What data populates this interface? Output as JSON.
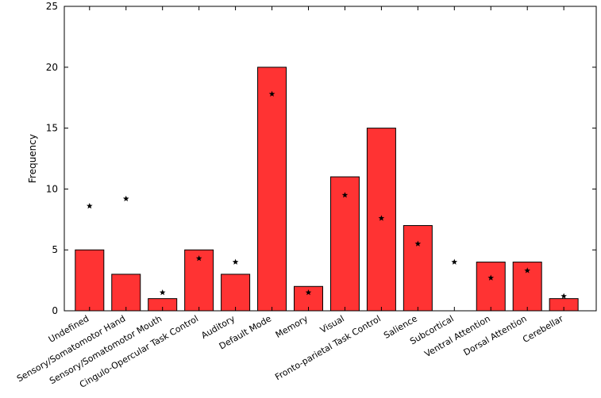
{
  "chart_data": {
    "type": "bar",
    "title": "",
    "xlabel": "",
    "ylabel": "Frequency",
    "ylim": [
      0,
      25
    ],
    "yticks": [
      0,
      5,
      10,
      15,
      20,
      25
    ],
    "grid": false,
    "categories": [
      "Undefined",
      "Sensory/Somatomotor Hand",
      "Sensory/Somatomotor Mouth",
      "Cingulo-Opercular Task Control",
      "Auditory",
      "Default Mode",
      "Memory",
      "Visual",
      "Fronto-parietal Task Control",
      "Salience",
      "Subcortical",
      "Ventral Attention",
      "Dorsal Attention",
      "Cerebellar"
    ],
    "series": [
      {
        "type": "bar",
        "values": [
          5,
          3,
          1,
          5,
          3,
          20,
          2,
          11,
          15,
          7,
          0,
          4,
          4,
          1
        ],
        "color": "#ff3333",
        "edgecolor": "#000000"
      },
      {
        "type": "scatter",
        "marker": "star",
        "values": [
          8.6,
          9.2,
          1.5,
          4.3,
          4.0,
          17.8,
          1.5,
          9.5,
          7.6,
          5.5,
          4.0,
          2.7,
          3.3,
          1.2
        ],
        "color": "#000000"
      }
    ]
  }
}
